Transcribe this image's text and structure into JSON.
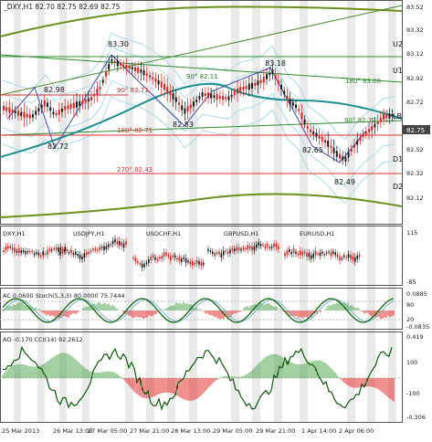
{
  "colors": {
    "background": "#ffffff",
    "frame": "#555555",
    "bull": "#1a1a1a",
    "bear": "#e02020",
    "ma_teal": "#1f8f8f",
    "channel_green": "#6a8f1a",
    "band_light": "#a9dce8",
    "level_red": "#e03030",
    "shade": "#d9d9d9",
    "stoch_main": "#0a6a0a",
    "stoch_signal": "#7fb0d8",
    "zigzag": "#4a4ab0"
  },
  "header": {
    "symbol_line": "_DXY,H1  82.70 82.75 82.69 82.75"
  },
  "main_chart": {
    "price_axis": [
      "82.52",
      "82.72",
      "82.92",
      "83.12",
      "83.32",
      "82.32",
      "82.12"
    ],
    "price_ticks": [
      "83.52",
      "83.32",
      "83.12",
      "82.92",
      "82.72",
      "82.52",
      "82.32",
      "82.12"
    ],
    "current_price": "82.75",
    "level_tags": [
      "U2",
      "U1",
      "LB",
      "D1",
      "D2"
    ],
    "swing_labels": [
      "83.30",
      "82.98",
      "82.72",
      "82.83",
      "83.18",
      "82.65",
      "82.49"
    ],
    "angle_labels": [
      "90° 82.11",
      "180° 83.08",
      "90° 82.71",
      "180° 82.71",
      "270° 82.43",
      "90° 82.77"
    ]
  },
  "subcharts": {
    "pairs": [
      "DXY,H1",
      "USDJPY,H1",
      "USDCHF,H1",
      "GBPUSD,H1",
      "EURUSD,H1"
    ],
    "right_scale": [
      "115",
      "-85"
    ]
  },
  "ac_panel": {
    "label": "AC 0.0600  Stoch(5,3,3) 80.0000 75.7444",
    "right_scale": [
      "0.0885",
      "80",
      "20",
      "-0.0835"
    ]
  },
  "ao_panel": {
    "label": "AO -0.170  CCI(14) 92.2612",
    "right_scale": [
      "0.419",
      "100",
      "-100",
      "-0.306"
    ]
  },
  "time_axis": [
    "25 Mar 2013",
    "26 Mar 13:00",
    "27 Mar 05:00",
    "27 Mar 21:00",
    "28 Mar 13:00",
    "29 Mar 05:00",
    "29 Mar 21:00",
    "1 Apr 14:00",
    "2 Apr 06:00"
  ]
}
